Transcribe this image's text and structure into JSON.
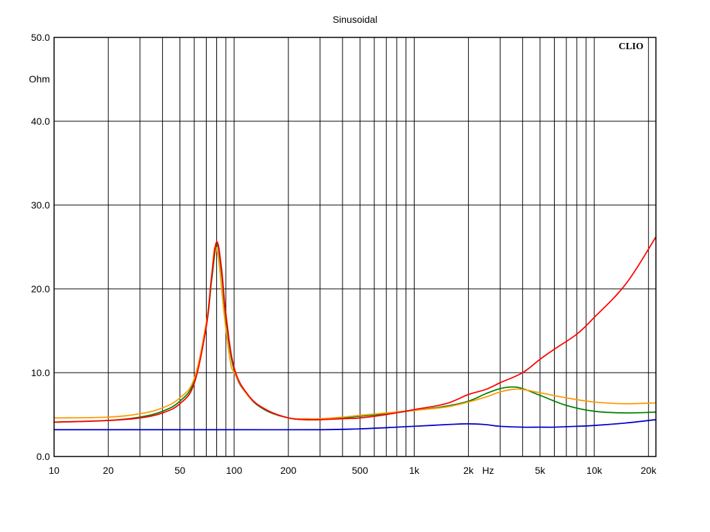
{
  "chart_data": {
    "type": "line",
    "title": "Sinusoidal",
    "ylabel": "Ohm",
    "xlabel": "Hz",
    "brand": "CLIO",
    "x_scale": "log",
    "xlim": [
      10,
      22000
    ],
    "ylim": [
      0,
      50
    ],
    "grid": true,
    "y_ticks": [
      "0.0",
      "10.0",
      "20.0",
      "30.0",
      "40.0",
      "50.0"
    ],
    "y_tick_values": [
      0,
      10,
      20,
      30,
      40,
      50
    ],
    "x_tick_labels": [
      {
        "v": 10,
        "t": "10"
      },
      {
        "v": 20,
        "t": "20"
      },
      {
        "v": 50,
        "t": "50"
      },
      {
        "v": 100,
        "t": "100"
      },
      {
        "v": 200,
        "t": "200"
      },
      {
        "v": 500,
        "t": "500"
      },
      {
        "v": 1000,
        "t": "1k"
      },
      {
        "v": 2000,
        "t": "2k"
      },
      {
        "v": 5000,
        "t": "5k"
      },
      {
        "v": 10000,
        "t": "10k"
      },
      {
        "v": 20000,
        "t": "20k"
      }
    ],
    "x_gridlines": [
      20,
      30,
      40,
      50,
      60,
      70,
      80,
      90,
      100,
      200,
      300,
      400,
      500,
      600,
      700,
      800,
      900,
      1000,
      2000,
      3000,
      4000,
      5000,
      6000,
      7000,
      8000,
      9000,
      10000,
      20000
    ],
    "series": [
      {
        "color": "#0000cc",
        "points": [
          [
            10,
            3.2
          ],
          [
            50,
            3.2
          ],
          [
            100,
            3.2
          ],
          [
            300,
            3.2
          ],
          [
            500,
            3.3
          ],
          [
            800,
            3.5
          ],
          [
            1000,
            3.6
          ],
          [
            1500,
            3.8
          ],
          [
            2000,
            3.9
          ],
          [
            2500,
            3.8
          ],
          [
            3000,
            3.6
          ],
          [
            4000,
            3.5
          ],
          [
            5000,
            3.5
          ],
          [
            6000,
            3.5
          ],
          [
            8000,
            3.6
          ],
          [
            10000,
            3.7
          ],
          [
            15000,
            4.0
          ],
          [
            22000,
            4.4
          ]
        ]
      },
      {
        "color": "#008000",
        "points": [
          [
            10,
            4.1
          ],
          [
            20,
            4.3
          ],
          [
            30,
            4.7
          ],
          [
            40,
            5.4
          ],
          [
            50,
            6.6
          ],
          [
            60,
            9.0
          ],
          [
            70,
            15.5
          ],
          [
            75,
            21.0
          ],
          [
            80,
            25.3
          ],
          [
            85,
            22.0
          ],
          [
            90,
            16.5
          ],
          [
            100,
            10.3
          ],
          [
            120,
            7.2
          ],
          [
            150,
            5.5
          ],
          [
            200,
            4.6
          ],
          [
            250,
            4.4
          ],
          [
            300,
            4.4
          ],
          [
            400,
            4.6
          ],
          [
            500,
            4.8
          ],
          [
            700,
            5.1
          ],
          [
            1000,
            5.5
          ],
          [
            1500,
            6.0
          ],
          [
            2000,
            6.6
          ],
          [
            2500,
            7.5
          ],
          [
            3000,
            8.1
          ],
          [
            3500,
            8.3
          ],
          [
            4000,
            8.1
          ],
          [
            5000,
            7.3
          ],
          [
            7000,
            6.1
          ],
          [
            10000,
            5.4
          ],
          [
            15000,
            5.2
          ],
          [
            22000,
            5.3
          ]
        ]
      },
      {
        "color": "#ff9900",
        "points": [
          [
            10,
            4.6
          ],
          [
            20,
            4.7
          ],
          [
            30,
            5.1
          ],
          [
            40,
            5.8
          ],
          [
            50,
            7.0
          ],
          [
            60,
            9.3
          ],
          [
            70,
            16.0
          ],
          [
            75,
            21.5
          ],
          [
            78,
            25.0
          ],
          [
            82,
            23.5
          ],
          [
            88,
            17.0
          ],
          [
            95,
            11.5
          ],
          [
            100,
            10.0
          ],
          [
            120,
            7.2
          ],
          [
            150,
            5.6
          ],
          [
            200,
            4.6
          ],
          [
            250,
            4.5
          ],
          [
            300,
            4.5
          ],
          [
            400,
            4.7
          ],
          [
            500,
            4.9
          ],
          [
            700,
            5.2
          ],
          [
            1000,
            5.5
          ],
          [
            1500,
            5.9
          ],
          [
            2000,
            6.5
          ],
          [
            2500,
            7.1
          ],
          [
            3000,
            7.7
          ],
          [
            3500,
            8.0
          ],
          [
            4000,
            8.0
          ],
          [
            5000,
            7.6
          ],
          [
            7000,
            7.0
          ],
          [
            10000,
            6.5
          ],
          [
            15000,
            6.3
          ],
          [
            22000,
            6.4
          ]
        ]
      },
      {
        "color": "#ff0000",
        "points": [
          [
            10,
            4.1
          ],
          [
            20,
            4.3
          ],
          [
            30,
            4.6
          ],
          [
            40,
            5.2
          ],
          [
            50,
            6.3
          ],
          [
            60,
            8.7
          ],
          [
            70,
            15.5
          ],
          [
            75,
            21.5
          ],
          [
            80,
            25.6
          ],
          [
            85,
            22.5
          ],
          [
            90,
            17.0
          ],
          [
            100,
            10.6
          ],
          [
            120,
            7.3
          ],
          [
            150,
            5.6
          ],
          [
            200,
            4.6
          ],
          [
            250,
            4.4
          ],
          [
            300,
            4.4
          ],
          [
            400,
            4.5
          ],
          [
            500,
            4.6
          ],
          [
            700,
            5.0
          ],
          [
            1000,
            5.6
          ],
          [
            1500,
            6.3
          ],
          [
            2000,
            7.4
          ],
          [
            2500,
            8.0
          ],
          [
            3000,
            8.8
          ],
          [
            4000,
            10.0
          ],
          [
            5000,
            11.6
          ],
          [
            6000,
            12.8
          ],
          [
            8000,
            14.6
          ],
          [
            10000,
            16.6
          ],
          [
            15000,
            20.6
          ],
          [
            22000,
            26.2
          ]
        ]
      }
    ]
  }
}
